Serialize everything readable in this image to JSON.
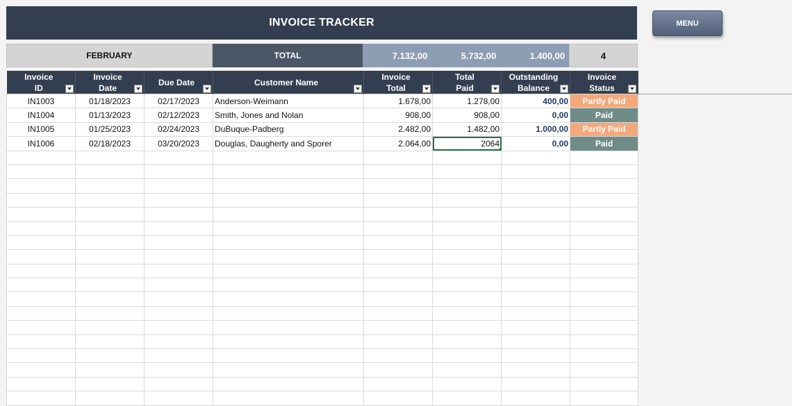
{
  "title": "INVOICE TRACKER",
  "menu_label": "MENU",
  "summary": {
    "month": "FEBRUARY",
    "total_label": "TOTAL",
    "invoice_total": "7.132,00",
    "total_paid": "5.732,00",
    "outstanding": "1.400,00",
    "count": "4"
  },
  "columns": [
    {
      "line1": "Invoice",
      "line2": "ID"
    },
    {
      "line1": "Invoice",
      "line2": "Date"
    },
    {
      "line1": "Due Date",
      "line2": ""
    },
    {
      "line1": "Customer Name",
      "line2": ""
    },
    {
      "line1": "Invoice",
      "line2": "Total"
    },
    {
      "line1": "Total",
      "line2": "Paid"
    },
    {
      "line1": "Outstanding",
      "line2": "Balance"
    },
    {
      "line1": "Invoice",
      "line2": "Status"
    }
  ],
  "rows": [
    {
      "id": "IN1003",
      "date": "01/18/2023",
      "due": "02/17/2023",
      "customer": "Anderson-Weimann",
      "total": "1.678,00",
      "paid": "1.278,00",
      "balance": "400,00",
      "status": "Partly Paid"
    },
    {
      "id": "IN1004",
      "date": "01/13/2023",
      "due": "02/12/2023",
      "customer": "Smith, Jones and Nolan",
      "total": "908,00",
      "paid": "908,00",
      "balance": "0,00",
      "status": "Paid"
    },
    {
      "id": "IN1005",
      "date": "01/25/2023",
      "due": "02/24/2023",
      "customer": "DuBuque-Padberg",
      "total": "2.482,00",
      "paid": "1.482,00",
      "balance": "1.000,00",
      "status": "Partly Paid"
    },
    {
      "id": "IN1006",
      "date": "02/18/2023",
      "due": "03/20/2023",
      "customer": "Douglas, Daugherty and Sporer",
      "total": "2.064,00",
      "paid": "2064",
      "balance": "0,00",
      "status": "Paid"
    }
  ],
  "colors": {
    "header": "#333f50",
    "partly_paid": "#f4a97b",
    "paid": "#6f8c88"
  }
}
